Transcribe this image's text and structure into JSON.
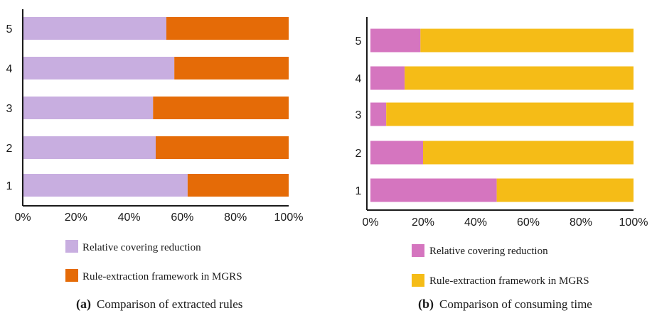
{
  "chart_data": [
    {
      "type": "bar",
      "orientation": "horizontal",
      "stacked": "percent",
      "caption_label": "(a)",
      "caption_text": "Comparison of extracted rules",
      "categories": [
        "1",
        "2",
        "3",
        "4",
        "5"
      ],
      "x_ticks": [
        "0%",
        "20%",
        "40%",
        "60%",
        "80%",
        "100%"
      ],
      "xlim": [
        0,
        100
      ],
      "legend_position": "bottom",
      "series": [
        {
          "name": "Relative covering reduction",
          "color": "#c8aee0",
          "values": [
            62,
            50,
            49,
            57,
            54
          ]
        },
        {
          "name": "Rule-extraction framework in MGRS",
          "color": "#e56b07",
          "values": [
            38,
            50,
            51,
            43,
            46
          ]
        }
      ]
    },
    {
      "type": "bar",
      "orientation": "horizontal",
      "stacked": "percent",
      "caption_label": "(b)",
      "caption_text": "Comparison of consuming time",
      "categories": [
        "1",
        "2",
        "3",
        "4",
        "5"
      ],
      "x_ticks": [
        "0%",
        "20%",
        "40%",
        "60%",
        "80%",
        "100%"
      ],
      "xlim": [
        0,
        100
      ],
      "legend_position": "bottom",
      "series": [
        {
          "name": "Relative covering reduction",
          "color": "#d575bf",
          "values": [
            48,
            20,
            6,
            13,
            19
          ]
        },
        {
          "name": "Rule-extraction framework in MGRS",
          "color": "#f5bc17",
          "values": [
            52,
            80,
            94,
            87,
            81
          ]
        }
      ]
    }
  ]
}
